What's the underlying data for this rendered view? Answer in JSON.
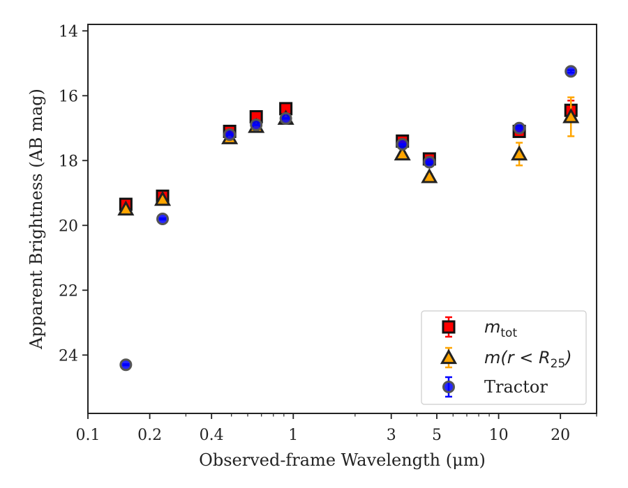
{
  "chart_data": {
    "type": "scatter",
    "xscale": "log",
    "y_inverted": true,
    "xlim": [
      0.1,
      30
    ],
    "ylim": [
      25.8,
      13.8
    ],
    "xlabel": "Observed-frame Wavelength (μm)",
    "ylabel": "Apparent Brightness (AB mag)",
    "x_ticks_major": [
      0.1,
      0.2,
      0.4,
      1,
      3,
      5,
      10,
      20
    ],
    "x_tick_labels": [
      "0.1",
      "0.2",
      "0.4",
      "1",
      "3",
      "5",
      "10",
      "20"
    ],
    "y_ticks": [
      14,
      16,
      18,
      20,
      22,
      24
    ],
    "y_tick_labels": [
      "14",
      "16",
      "18",
      "20",
      "22",
      "24"
    ],
    "legend": {
      "position": "lower-right"
    },
    "series": [
      {
        "name": "m_tot",
        "label_main": "m",
        "label_sub": "tot",
        "marker": "square",
        "color": "#ff0000",
        "edge": "#111111",
        "errcolor": "#ff0000",
        "x": [
          0.153,
          0.231,
          0.49,
          0.66,
          0.92,
          3.4,
          4.6,
          12.6,
          22.5
        ],
        "y": [
          19.35,
          19.1,
          17.1,
          16.65,
          16.4,
          17.4,
          17.95,
          17.1,
          16.45
        ],
        "err": [
          0.05,
          0.05,
          0.03,
          0.03,
          0.03,
          0.04,
          0.05,
          0.15,
          0.3
        ]
      },
      {
        "name": "m(r < R_25)",
        "label_main": "m(r < R",
        "label_sub": "25",
        "label_tail": ")",
        "marker": "triangle",
        "color": "#ffa500",
        "edge": "#222222",
        "errcolor": "#ffa500",
        "x": [
          0.153,
          0.231,
          0.49,
          0.66,
          0.92,
          3.4,
          4.6,
          12.6,
          22.5
        ],
        "y": [
          19.5,
          19.2,
          17.3,
          16.95,
          16.7,
          17.8,
          18.5,
          17.8,
          16.65
        ],
        "err": [
          0.05,
          0.05,
          0.03,
          0.03,
          0.03,
          0.05,
          0.08,
          0.35,
          0.6
        ]
      },
      {
        "name": "Tractor",
        "label_main": "Tractor",
        "marker": "circle",
        "color": "#0000ff",
        "edge": "#555555",
        "errcolor": "#0000ff",
        "x": [
          0.153,
          0.231,
          0.49,
          0.66,
          0.92,
          3.4,
          4.6,
          12.6,
          22.5
        ],
        "y": [
          24.3,
          19.8,
          17.2,
          16.9,
          16.7,
          17.5,
          18.05,
          17.0,
          15.25
        ],
        "err": [
          0.02,
          0.02,
          0.01,
          0.01,
          0.01,
          0.01,
          0.02,
          0.02,
          0.04
        ]
      }
    ]
  }
}
